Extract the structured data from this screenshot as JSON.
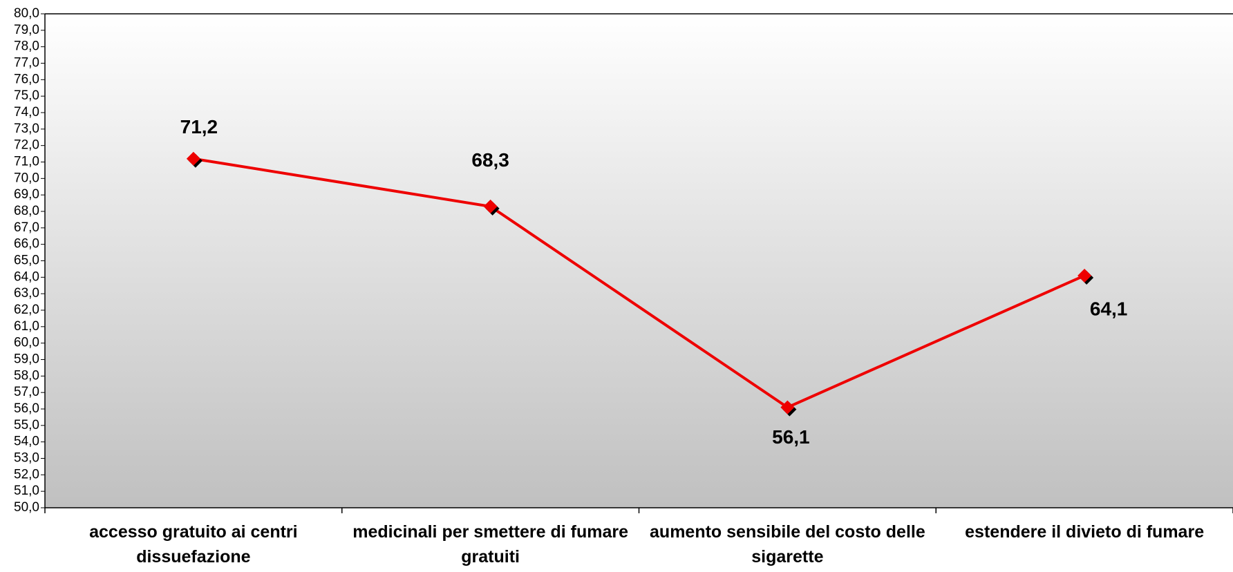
{
  "chart_data": {
    "type": "line",
    "categories": [
      "accesso gratuito ai centri dissuefazione",
      "medicinali per smettere di fumare gratuiti",
      "aumento sensibile del costo delle sigarette",
      "estendere il divieto di fumare"
    ],
    "values": [
      71.2,
      68.3,
      56.1,
      64.1
    ],
    "value_labels": [
      "71,2",
      "68,3",
      "56,1",
      "64,1"
    ],
    "color": "#ee0000",
    "ylim": [
      50,
      80
    ],
    "yticks": [
      {
        "value": 50,
        "label": "50,0"
      },
      {
        "value": 51,
        "label": "51,0"
      },
      {
        "value": 52,
        "label": "52,0"
      },
      {
        "value": 53,
        "label": "53,0"
      },
      {
        "value": 54,
        "label": "54,0"
      },
      {
        "value": 55,
        "label": "55,0"
      },
      {
        "value": 56,
        "label": "56,0"
      },
      {
        "value": 57,
        "label": "57,0"
      },
      {
        "value": 58,
        "label": "58,0"
      },
      {
        "value": 59,
        "label": "59,0"
      },
      {
        "value": 60,
        "label": "60,0"
      },
      {
        "value": 61,
        "label": "61,0"
      },
      {
        "value": 62,
        "label": "62,0"
      },
      {
        "value": 63,
        "label": "63,0"
      },
      {
        "value": 64,
        "label": "64,0"
      },
      {
        "value": 65,
        "label": "65,0"
      },
      {
        "value": 66,
        "label": "66,0"
      },
      {
        "value": 67,
        "label": "67,0"
      },
      {
        "value": 68,
        "label": "68,0"
      },
      {
        "value": 69,
        "label": "69,0"
      },
      {
        "value": 70,
        "label": "70,0"
      },
      {
        "value": 71,
        "label": "71,0"
      },
      {
        "value": 72,
        "label": "72,0"
      },
      {
        "value": 73,
        "label": "73,0"
      },
      {
        "value": 74,
        "label": "74,0"
      },
      {
        "value": 75,
        "label": "75,0"
      },
      {
        "value": 76,
        "label": "76,0"
      },
      {
        "value": 77,
        "label": "77,0"
      },
      {
        "value": 78,
        "label": "78,0"
      },
      {
        "value": 79,
        "label": "79,0"
      },
      {
        "value": 80,
        "label": "80,0"
      }
    ],
    "grid": false
  }
}
